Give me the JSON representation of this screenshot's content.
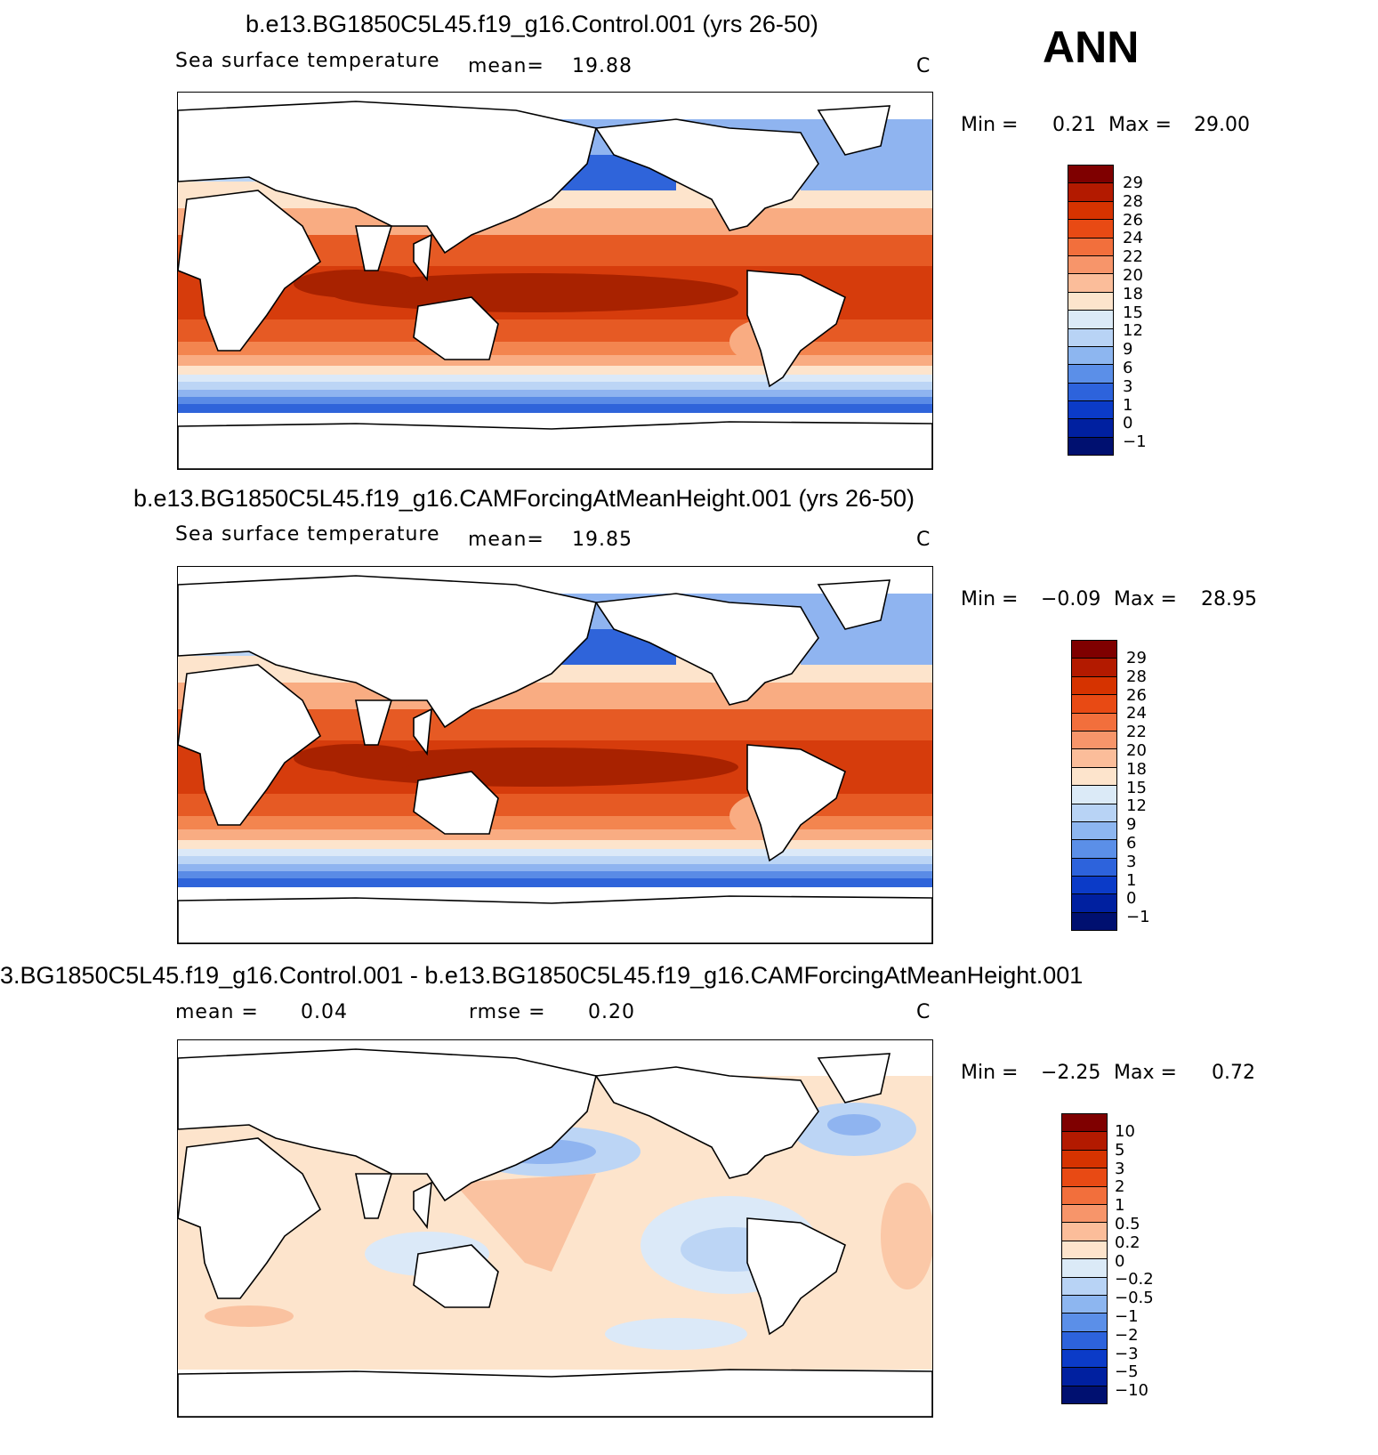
{
  "season_label": "ANN",
  "units": "C",
  "panels": [
    {
      "title": "b.e13.BG1850C5L45.f19_g16.Control.001 (yrs 26-50)",
      "variable": "Sea surface temperature",
      "mean_label": "mean=",
      "mean_value": "19.88",
      "min_label": "Min =",
      "min_value": "0.21",
      "max_label": "Max =",
      "max_value": "29.00",
      "colorbar_labels": [
        "29",
        "28",
        "26",
        "24",
        "22",
        "20",
        "18",
        "15",
        "12",
        "9",
        "6",
        "3",
        "1",
        "0",
        "−1"
      ]
    },
    {
      "title": "b.e13.BG1850C5L45.f19_g16.CAMForcingAtMeanHeight.001 (yrs 26-50)",
      "variable": "Sea surface temperature",
      "mean_label": "mean=",
      "mean_value": "19.85",
      "min_label": "Min =",
      "min_value": "−0.09",
      "max_label": "Max =",
      "max_value": "28.95",
      "colorbar_labels": [
        "29",
        "28",
        "26",
        "24",
        "22",
        "20",
        "18",
        "15",
        "12",
        "9",
        "6",
        "3",
        "1",
        "0",
        "−1"
      ]
    },
    {
      "title": "3.BG1850C5L45.f19_g16.Control.001 - b.e13.BG1850C5L45.f19_g16.CAMForcingAtMeanHeight.001",
      "mean_label": "mean =",
      "mean_value": "0.04",
      "rmse_label": "rmse =",
      "rmse_value": "0.20",
      "min_label": "Min =",
      "min_value": "−2.25",
      "max_label": "Max =",
      "max_value": "0.72",
      "colorbar_labels": [
        "10",
        "5",
        "3",
        "2",
        "1",
        "0.5",
        "0.2",
        "0",
        "−0.2",
        "−0.5",
        "−1",
        "−2",
        "−3",
        "−5",
        "−10"
      ]
    }
  ],
  "colorbar_colors": [
    "#7f0000",
    "#b31a00",
    "#d63300",
    "#e84a14",
    "#f26f3c",
    "#f7956a",
    "#fbbd9a",
    "#fde4cc",
    "#dbeaf7",
    "#b8d3f5",
    "#8db6f0",
    "#5b8fe8",
    "#2d63dc",
    "#0b3bc8",
    "#0020a0",
    "#001070"
  ],
  "map_palette": {
    "deep_red": "#a82200",
    "red": "#d63c0c",
    "orange_red": "#e65a24",
    "orange": "#f3854f",
    "salmon": "#f9ac82",
    "peach": "#fdd2b3",
    "cream": "#fee8d6",
    "pale_blue": "#dbe9f8",
    "light_blue": "#bcd5f5",
    "blue": "#8fb4f0",
    "mid_blue": "#5a8be6",
    "strong_blue": "#2f64da",
    "land": "#ffffff",
    "coast": "#000000"
  }
}
